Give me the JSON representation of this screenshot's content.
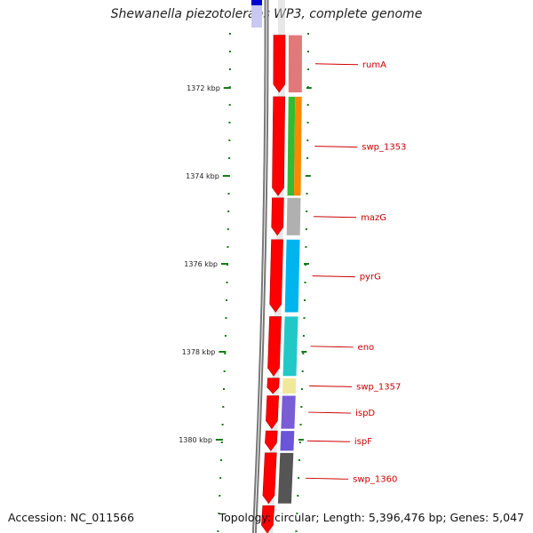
{
  "title": "Shewanella piezotolerans WP3, complete genome",
  "footer": {
    "accession": "Accession: NC_011566",
    "summary": "Topology: circular; Length: 5,396,476 bp; Genes: 5,047"
  },
  "colors": {
    "backbone": "#777777",
    "forward_strand": "#ff0000",
    "tick": "#1a7a1a",
    "gene_label": "#cc0000",
    "top_block": "#0000cc"
  },
  "ruler": [
    {
      "label": "1372 kbp",
      "pos": 1372
    },
    {
      "label": "1374 kbp",
      "pos": 1374
    },
    {
      "label": "1376 kbp",
      "pos": 1376
    },
    {
      "label": "1378 kbp",
      "pos": 1378
    },
    {
      "label": "1380 kbp",
      "pos": 1380
    }
  ],
  "genes": [
    {
      "name": "rumA",
      "start": 1370.8,
      "end": 1372.1,
      "color": "#e07a7a"
    },
    {
      "name": "swp_1353",
      "start": 1372.2,
      "end": 1374.45,
      "color": "#33bb33",
      "color2": "#ff8800"
    },
    {
      "name": "mazG",
      "start": 1374.5,
      "end": 1375.35,
      "color": "#b0b0b0"
    },
    {
      "name": "pyrG",
      "start": 1375.45,
      "end": 1377.1,
      "color": "#00b4ee"
    },
    {
      "name": "eno",
      "start": 1377.2,
      "end": 1378.55,
      "color": "#22c8c8"
    },
    {
      "name": "swp_1357",
      "start": 1378.6,
      "end": 1378.95,
      "color": "#f2e89a"
    },
    {
      "name": "ispD",
      "start": 1379.0,
      "end": 1379.75,
      "color": "#7a5cd6"
    },
    {
      "name": "ispF",
      "start": 1379.8,
      "end": 1380.25,
      "color": "#6a55d8"
    },
    {
      "name": "swp_1360",
      "start": 1380.3,
      "end": 1381.45,
      "color": "#555555"
    }
  ],
  "trailing_cds": [
    {
      "start": 1381.5,
      "end": 1382.2
    }
  ]
}
